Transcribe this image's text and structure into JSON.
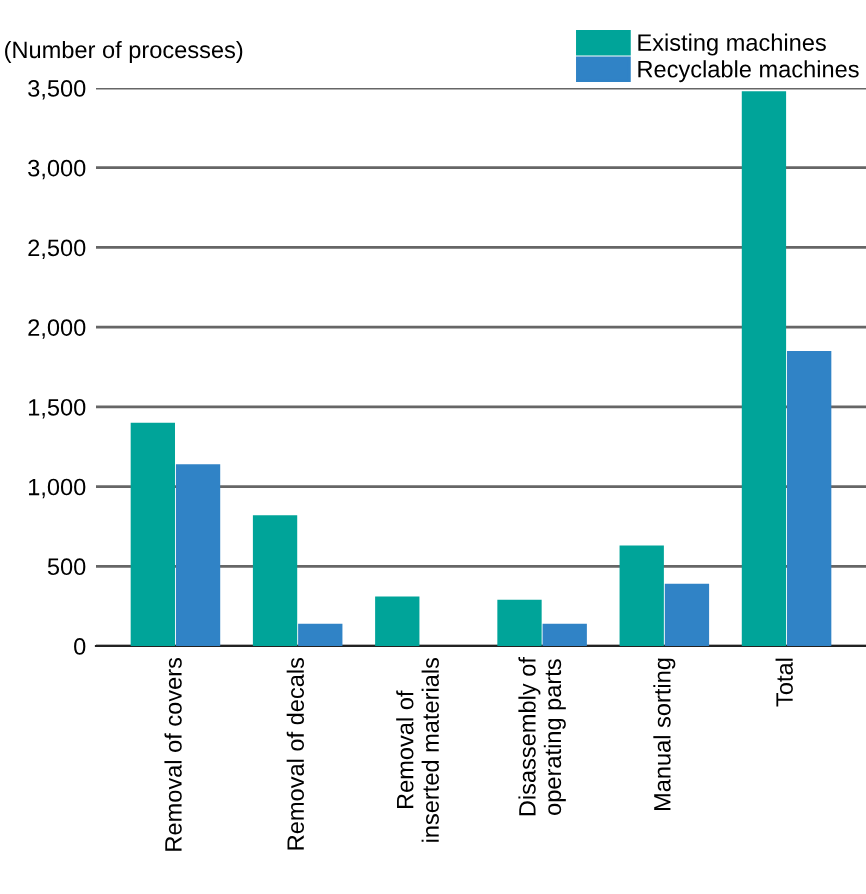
{
  "chart_data": {
    "type": "bar",
    "ylabel": "(Number of processes)",
    "categories": [
      "Removal of covers",
      "Removal of decals",
      "Removal of\ninserted materials",
      "Disassembly of\noperating parts",
      "Manual sorting",
      "Total"
    ],
    "series": [
      {
        "name": "Existing machines",
        "color": "#00a499",
        "values": [
          1400,
          820,
          310,
          290,
          630,
          3480
        ]
      },
      {
        "name": "Recyclable machines",
        "color": "#3083c6",
        "values": [
          1140,
          140,
          0,
          140,
          390,
          1850
        ]
      }
    ],
    "ylim": [
      0,
      3500
    ],
    "yticks": [
      {
        "value": 0,
        "label": "0"
      },
      {
        "value": 500,
        "label": "500"
      },
      {
        "value": 1000,
        "label": "1,000"
      },
      {
        "value": 1500,
        "label": "1,500"
      },
      {
        "value": 2000,
        "label": "2,000"
      },
      {
        "value": 2500,
        "label": "2,500"
      },
      {
        "value": 3000,
        "label": "3,000"
      },
      {
        "value": 3500,
        "label": "3,500"
      }
    ],
    "grid": "y",
    "legend": "top right"
  }
}
